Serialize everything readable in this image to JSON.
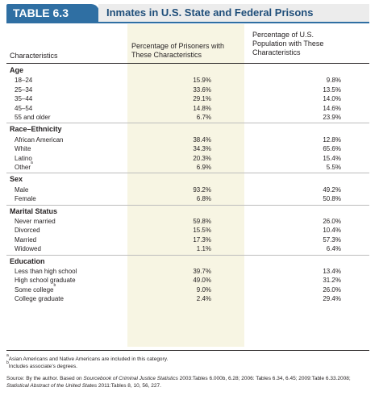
{
  "table": {
    "number": "TABLE 6.3",
    "title": "Inmates in U.S. State and Federal Prisons"
  },
  "columns": {
    "characteristics": "Characteristics",
    "prisoners": "Percentage of Prisoners with These Characteristics",
    "population": "Percentage of U.S. Population with These Characteristics"
  },
  "sections": [
    {
      "name": "Age",
      "rows": [
        {
          "label": "18–24",
          "prisoners": "15.9%",
          "population": "9.8%"
        },
        {
          "label": "25–34",
          "prisoners": "33.6%",
          "population": "13.5%"
        },
        {
          "label": "35–44",
          "prisoners": "29.1%",
          "population": "14.0%"
        },
        {
          "label": "45–54",
          "prisoners": "14.8%",
          "population": "14.6%"
        },
        {
          "label": "55 and older",
          "prisoners": "6.7%",
          "population": "23.9%"
        }
      ]
    },
    {
      "name": "Race–Ethnicity",
      "rows": [
        {
          "label": "African American",
          "prisoners": "38.4%",
          "population": "12.8%"
        },
        {
          "label": "White",
          "prisoners": "34.3%",
          "population": "65.6%"
        },
        {
          "label": "Latino",
          "prisoners": "20.3%",
          "population": "15.4%"
        },
        {
          "label": "Other",
          "sup": "a",
          "prisoners": "6.9%",
          "population": "5.5%"
        }
      ]
    },
    {
      "name": "Sex",
      "rows": [
        {
          "label": "Male",
          "prisoners": "93.2%",
          "population": "49.2%"
        },
        {
          "label": "Female",
          "prisoners": "6.8%",
          "population": "50.8%"
        }
      ]
    },
    {
      "name": "Marital Status",
      "rows": [
        {
          "label": "Never married",
          "prisoners": "59.8%",
          "population": "26.0%"
        },
        {
          "label": "Divorced",
          "prisoners": "15.5%",
          "population": "10.4%"
        },
        {
          "label": "Married",
          "prisoners": "17.3%",
          "population": "57.3%"
        },
        {
          "label": "Widowed",
          "prisoners": "1.1%",
          "population": "6.4%"
        }
      ]
    },
    {
      "name": "Education",
      "rows": [
        {
          "label": "Less than high school",
          "prisoners": "39.7%",
          "population": "13.4%"
        },
        {
          "label": "High school graduate",
          "prisoners": "49.0%",
          "population": "31.2%"
        },
        {
          "label": "Some college",
          "sup": "b",
          "prisoners": "9.0%",
          "population": "26.0%"
        },
        {
          "label": "College graduate",
          "prisoners": "2.4%",
          "population": "29.4%"
        }
      ]
    }
  ],
  "footnotes": {
    "a_mark": "a",
    "a": "Asian Americans and Native Americans are included in this category.",
    "b_mark": "b",
    "b": "Includes associate’s degrees."
  },
  "source": {
    "prefix": "Source: By the author. Based on ",
    "title1": "Sourcebook of Criminal Justice Statistics",
    "mid": " 2003:Tables 6.000b, 6.28; 2006: Tables 6.34, 6.45; 2009:Table 6.33.2008; ",
    "title2": "Statistical Abstract of the United States",
    "suffix": " 2011:Tables 8, 10, 56, 227."
  }
}
